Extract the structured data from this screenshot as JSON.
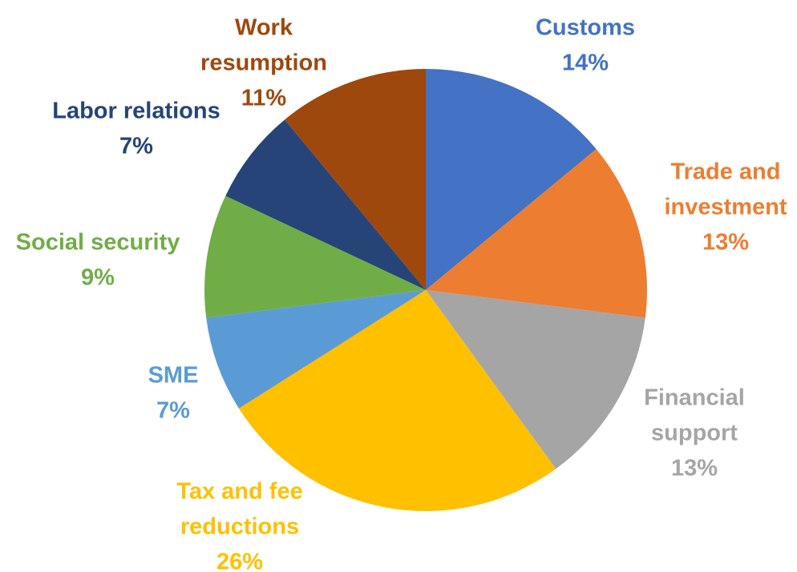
{
  "chart_data": {
    "type": "pie",
    "start_angle_deg": 0,
    "direction": "clockwise",
    "slices": [
      {
        "label_lines": [
          "Customs"
        ],
        "value_label": "14%",
        "value": 14,
        "color": "#4472C4"
      },
      {
        "label_lines": [
          "Trade and",
          "investment"
        ],
        "value_label": "13%",
        "value": 13,
        "color": "#ED7D31"
      },
      {
        "label_lines": [
          "Financial",
          "support"
        ],
        "value_label": "13%",
        "value": 13,
        "color": "#A5A5A5"
      },
      {
        "label_lines": [
          "Tax and fee",
          "reductions"
        ],
        "value_label": "26%",
        "value": 26,
        "color": "#FFC000"
      },
      {
        "label_lines": [
          "SME"
        ],
        "value_label": "7%",
        "value": 7,
        "color": "#5B9BD5"
      },
      {
        "label_lines": [
          "Social security"
        ],
        "value_label": "9%",
        "value": 9,
        "color": "#70AD47"
      },
      {
        "label_lines": [
          "Labor relations"
        ],
        "value_label": "7%",
        "value": 7,
        "color": "#264478"
      },
      {
        "label_lines": [
          "Work",
          "resumption"
        ],
        "value_label": "11%",
        "value": 11,
        "color": "#9E480E"
      }
    ]
  }
}
